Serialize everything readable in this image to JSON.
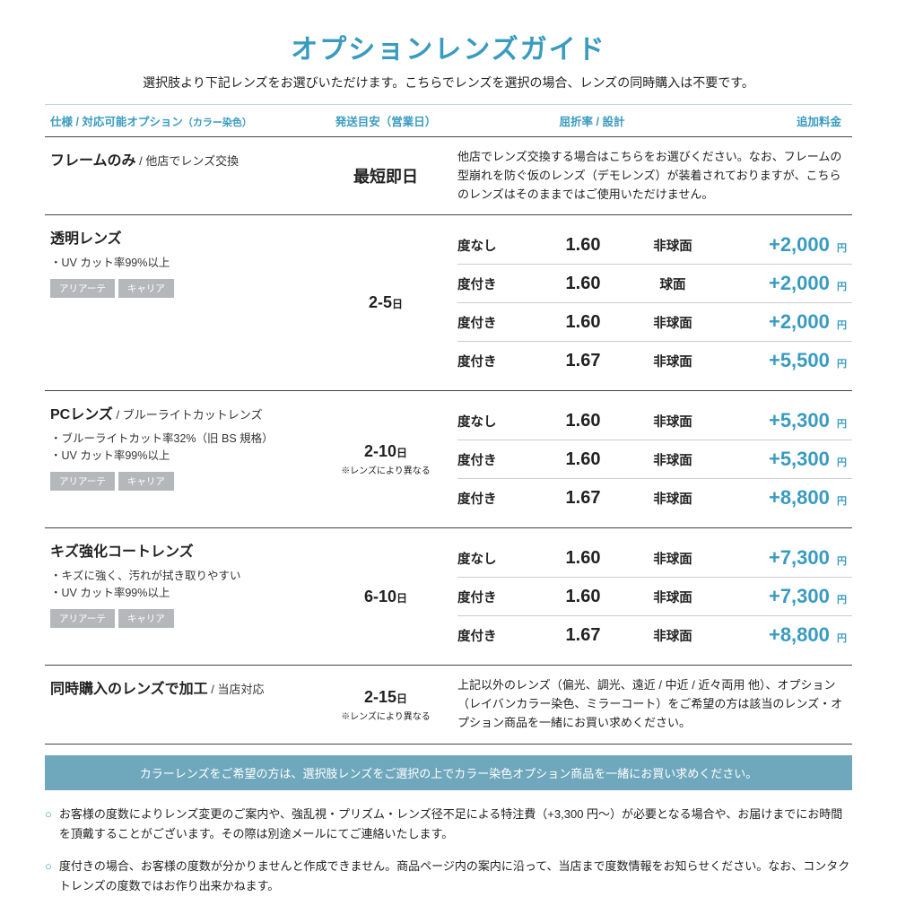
{
  "title": "オプションレンズガイド",
  "subtitle": "選択肢より下記レンズをお選びいただけます。こちらでレンズを選択の場合、レンズの同時購入は不要です。",
  "headers": {
    "spec": "仕様 / 対応可能オプション",
    "spec_paren": "（カラー染色）",
    "ship": "発送目安（営業日）",
    "idx": "屈折率 / 設計",
    "fee": "追加料金"
  },
  "yen": "円",
  "day": "日",
  "sections": [
    {
      "title": "フレームのみ",
      "title_sub": " / 他店でレンズ交換",
      "ship": "最短即日",
      "note": "他店でレンズ交換する場合はこちらをお選びください。なお、フレームの型崩れを防ぐ仮のレンズ（デモレンズ）が装着されておりますが、こちらのレンズはそのままではご使用いただけません。"
    },
    {
      "title": "透明レンズ",
      "bullets": [
        "・UV カット率99%以上"
      ],
      "badges": [
        "アリアーテ",
        "キャリア"
      ],
      "ship": "2-5",
      "variants": [
        {
          "presc": "度なし",
          "index": "1.60",
          "design": "非球面",
          "fee": "+2,000"
        },
        {
          "presc": "度付き",
          "index": "1.60",
          "design": "球面",
          "fee": "+2,000"
        },
        {
          "presc": "度付き",
          "index": "1.60",
          "design": "非球面",
          "fee": "+2,000"
        },
        {
          "presc": "度付き",
          "index": "1.67",
          "design": "非球面",
          "fee": "+5,500"
        }
      ]
    },
    {
      "title": "PCレンズ",
      "title_sub": " / ブルーライトカットレンズ",
      "bullets": [
        "・ブルーライトカット率32%（旧 BS 規格）",
        "・UV カット率99%以上"
      ],
      "badges": [
        "アリアーテ",
        "キャリア"
      ],
      "ship": "2-10",
      "ship_note": "※レンズにより異なる",
      "variants": [
        {
          "presc": "度なし",
          "index": "1.60",
          "design": "非球面",
          "fee": "+5,300"
        },
        {
          "presc": "度付き",
          "index": "1.60",
          "design": "非球面",
          "fee": "+5,300"
        },
        {
          "presc": "度付き",
          "index": "1.67",
          "design": "非球面",
          "fee": "+8,800"
        }
      ]
    },
    {
      "title": "キズ強化コートレンズ",
      "bullets": [
        "・キズに強く、汚れが拭き取りやすい",
        "・UV カット率99%以上"
      ],
      "badges": [
        "アリアーテ",
        "キャリア"
      ],
      "ship": "6-10",
      "variants": [
        {
          "presc": "度なし",
          "index": "1.60",
          "design": "非球面",
          "fee": "+7,300"
        },
        {
          "presc": "度付き",
          "index": "1.60",
          "design": "非球面",
          "fee": "+7,300"
        },
        {
          "presc": "度付き",
          "index": "1.67",
          "design": "非球面",
          "fee": "+8,800"
        }
      ]
    },
    {
      "title": "同時購入のレンズで加工",
      "title_sub": " / 当店対応",
      "ship": "2-15",
      "ship_note": "※レンズにより異なる",
      "note": "上記以外のレンズ（偏光、調光、遠近 / 中近 / 近々両用 他）、オプション（レイバンカラー染色、ミラーコート）をご希望の方は該当のレンズ・オプション商品を一緒にお買い求めください。"
    }
  ],
  "banner": "カラーレンズをご希望の方は、選択肢レンズをご選択の上でカラー染色オプション商品を一緒にお買い求めください。",
  "footnotes": [
    "お客様の度数によりレンズ変更のご案内や、強乱視・プリズム・レンズ径不足による特注費（+3,300 円〜）が必要となる場合や、お届けまでにお時間を頂戴することがございます。その際は別途メールにてご連絡いたします。",
    "度付きの場合、お客様の度数が分かりませんと作成できません。商品ページ内の案内に沿って、当店まで度数情報をお知らせください。なお、コンタクトレンズの度数ではお作り出来かねます。"
  ]
}
